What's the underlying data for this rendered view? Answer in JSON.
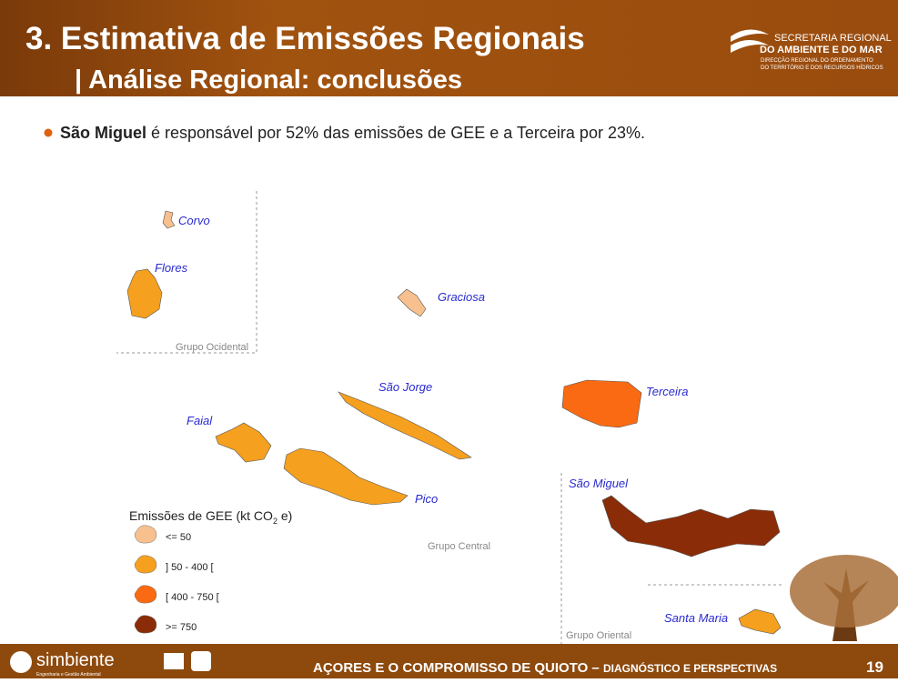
{
  "header": {
    "title": "3. Estimativa de Emissões Regionais",
    "subtitle": "| Análise Regional: conclusões",
    "logo": [
      "SECRETARIA REGIONAL",
      "DO AMBIENTE E DO MAR",
      "DIRECÇÃO REGIONAL DO ORDENAMENTO",
      "DO TERRITÓRIO E DOS RECURSOS HÍDRICOS"
    ]
  },
  "bullet": {
    "bold": "São Miguel",
    "text": " é responsável por 52% das emissões de GEE e a Terceira por 23%."
  },
  "map": {
    "islands": [
      {
        "name": "Corvo",
        "color": "#f7c08e"
      },
      {
        "name": "Flores",
        "color": "#f5a01f"
      },
      {
        "name": "Graciosa",
        "color": "#f7c08e"
      },
      {
        "name": "São Jorge",
        "color": "#f5a01f"
      },
      {
        "name": "Terceira",
        "color": "#fa6a12"
      },
      {
        "name": "Faial",
        "color": "#f5a01f"
      },
      {
        "name": "Pico",
        "color": "#f5a01f"
      },
      {
        "name": "São Miguel",
        "color": "#8a2c08"
      },
      {
        "name": "Santa Maria",
        "color": "#f5a01f"
      }
    ],
    "groups": [
      "Grupo Ocidental",
      "Grupo Central",
      "Grupo Oriental"
    ],
    "legend": {
      "title": [
        "Emissões de GEE (kt CO",
        "2",
        " e)"
      ],
      "items": [
        {
          "label": "<= 50",
          "color": "#f7c08e"
        },
        {
          "label": "] 50 - 400 [",
          "color": "#f5a01f"
        },
        {
          "label": "[ 400 - 750 [",
          "color": "#fa6a12"
        },
        {
          "label": ">= 750",
          "color": "#8a2c08"
        }
      ]
    }
  },
  "footer": {
    "brand": "simbiente",
    "brand_tagline": "Engenharia e Gestão Ambiental",
    "title": "AÇORES E O COMPROMISSO DE QUIOTO – ",
    "title_small": "DIAGNÓSTICO E PERSPECTIVAS",
    "page": "19"
  }
}
